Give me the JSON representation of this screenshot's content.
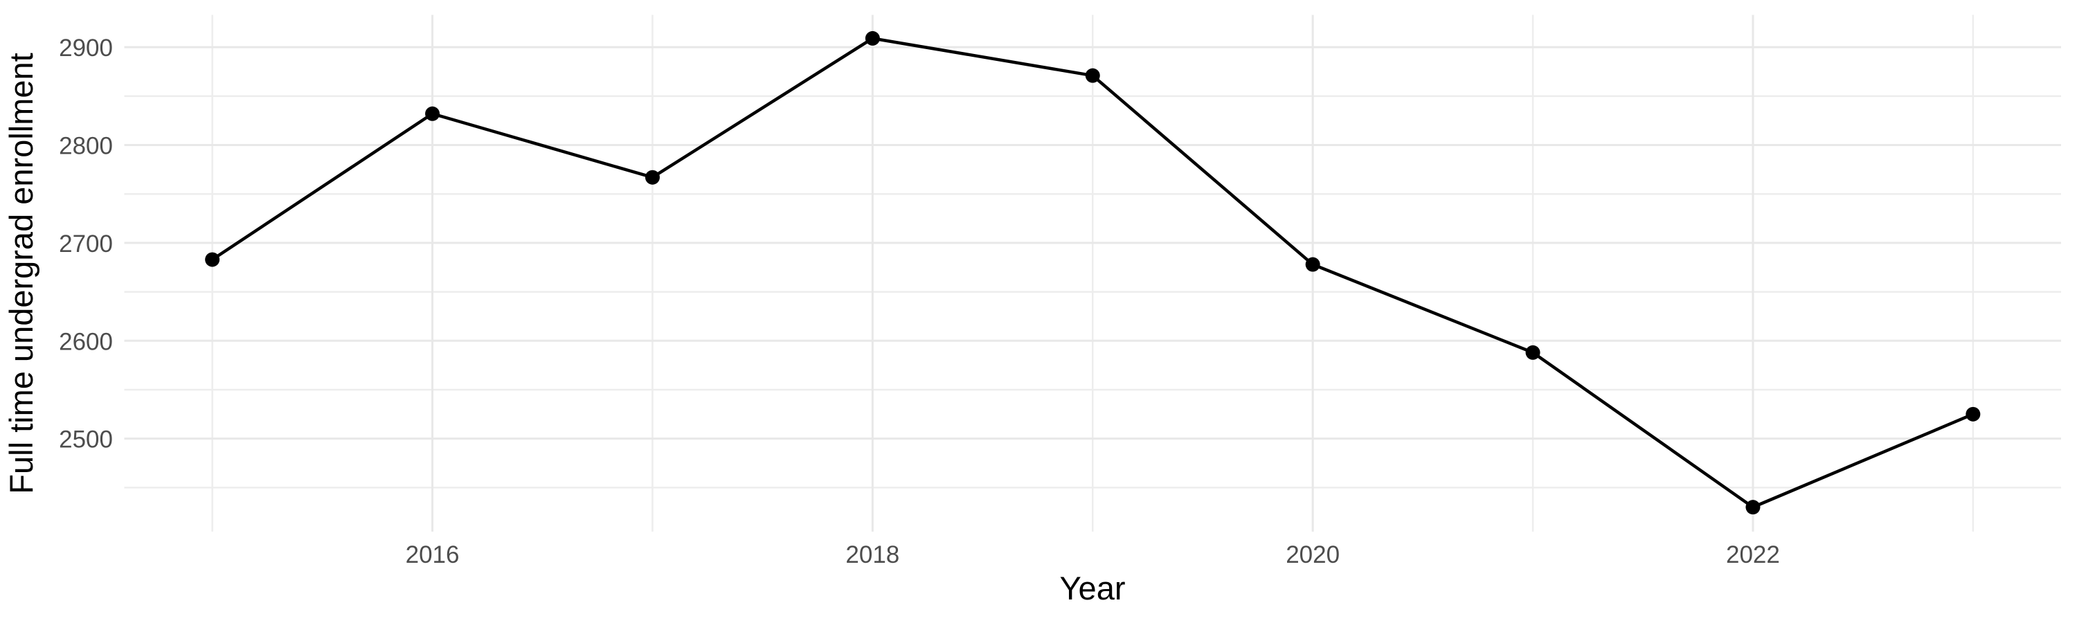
{
  "chart_data": {
    "type": "line",
    "title": "",
    "xlabel": "Year",
    "ylabel": "Full time undergrad enrollment",
    "x": [
      2015,
      2016,
      2017,
      2018,
      2019,
      2020,
      2021,
      2022,
      2023
    ],
    "series": [
      {
        "name": "Full time undergrad enrollment",
        "values": [
          2683,
          2832,
          2767,
          2909,
          2871,
          2678,
          2588,
          2430,
          2525
        ]
      }
    ],
    "x_ticks_major": [
      2016,
      2018,
      2020,
      2022
    ],
    "x_ticks_minor": [
      2015,
      2017,
      2019,
      2021,
      2023
    ],
    "y_ticks_major": [
      2500,
      2600,
      2700,
      2800,
      2900
    ],
    "y_ticks_minor": [
      2450,
      2550,
      2650,
      2750,
      2850
    ],
    "xlim": [
      2014.6,
      2023.4
    ],
    "ylim": [
      2405,
      2933
    ],
    "grid": true,
    "legend": false,
    "point_marker": "circle",
    "colors": {
      "line": "#000000",
      "point": "#000000",
      "grid": "#EBEBEB",
      "tick_text": "#4D4D4D",
      "axis_title_text": "#000000",
      "background": "#FFFFFF"
    }
  }
}
